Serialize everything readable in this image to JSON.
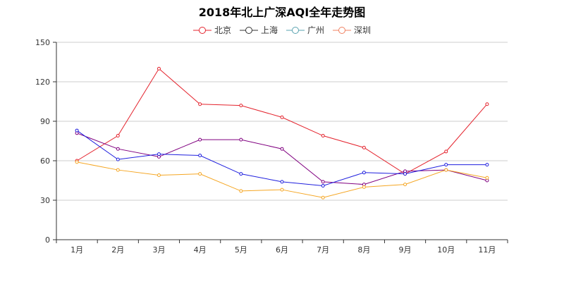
{
  "chart_data": {
    "type": "line",
    "title": "2018年北上广深AQI全年走势图",
    "categories": [
      "1月",
      "2月",
      "3月",
      "4月",
      "5月",
      "6月",
      "7月",
      "8月",
      "9月",
      "10月",
      "11月"
    ],
    "ylim": [
      0,
      150
    ],
    "yticks": [
      0,
      30,
      60,
      90,
      120,
      150
    ],
    "series": [
      {
        "name": "北京",
        "color": "#e4232d",
        "values": [
          60,
          79,
          130,
          103,
          102,
          93,
          79,
          70,
          50,
          67,
          103
        ]
      },
      {
        "name": "上海",
        "color": "#800080",
        "values": [
          81,
          69,
          63,
          76,
          76,
          69,
          44,
          42,
          52,
          53,
          45
        ]
      },
      {
        "name": "广州",
        "color": "#1f1fde",
        "values": [
          83,
          61,
          65,
          64,
          50,
          44,
          41,
          51,
          50,
          57,
          57
        ]
      },
      {
        "name": "深圳",
        "color": "#f5a623",
        "values": [
          59,
          53,
          49,
          50,
          37,
          38,
          32,
          40,
          42,
          53,
          47
        ]
      }
    ],
    "legend_icon_colors": [
      "#e4232d",
      "#333333",
      "#5aa3b0",
      "#f08060"
    ],
    "legend_position": "top-center",
    "grid": true
  }
}
